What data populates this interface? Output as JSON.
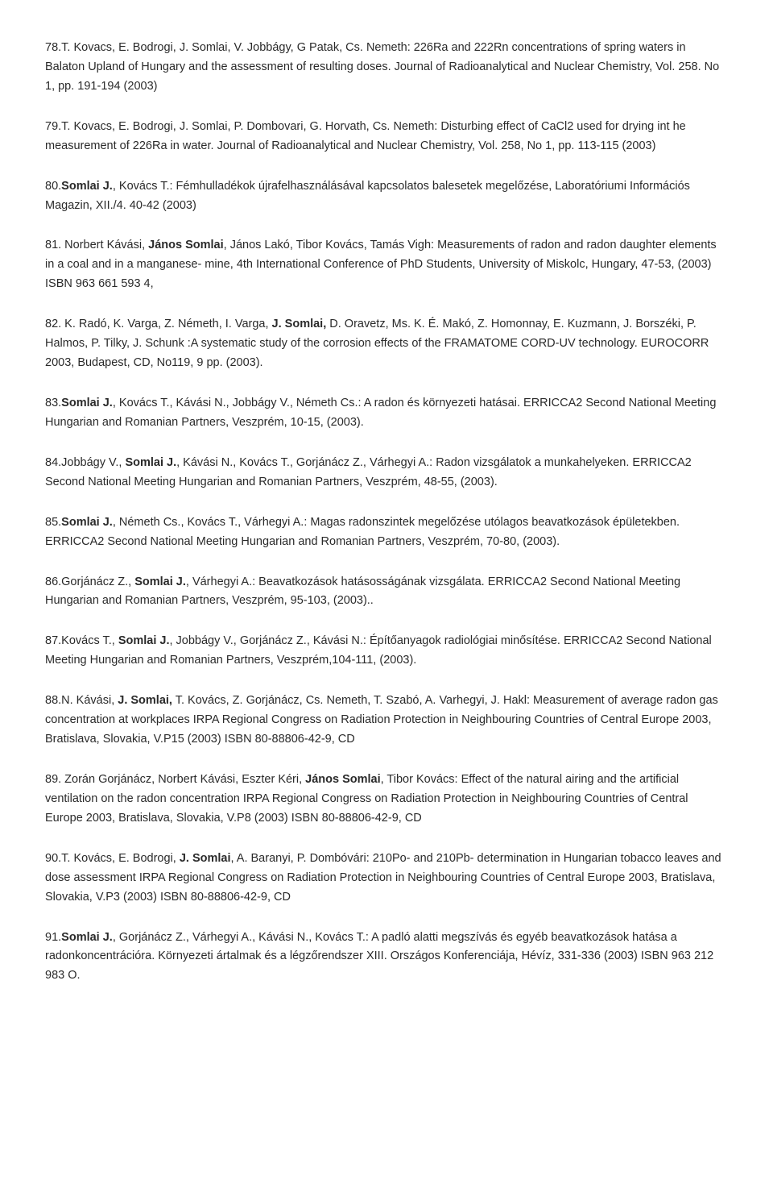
{
  "entries": [
    {
      "segments": [
        {
          "t": "78.T. Kovacs, E. Bodrogi, J. Somlai, V. Jobbágy, G Patak, Cs. Nemeth: 226Ra and 222Rn concentrations of spring waters in Balaton Upland of Hungary and the assessment of resulting doses. Journal of Radioanalytical and Nuclear Chemistry, Vol. 258. No 1, pp. 191-194 (2003)",
          "b": false
        }
      ]
    },
    {
      "segments": [
        {
          "t": "79.T. Kovacs, E. Bodrogi, J. Somlai, P. Dombovari, G. Horvath, Cs. Nemeth: Disturbing effect of CaCl2 used for drying int he measurement of 226Ra in water. Journal of Radioanalytical and Nuclear Chemistry, Vol. 258, No 1, pp. 113-115 (2003)",
          "b": false
        }
      ]
    },
    {
      "segments": [
        {
          "t": "80.",
          "b": false
        },
        {
          "t": "Somlai J.",
          "b": true
        },
        {
          "t": ", Kovács T.: Fémhulladékok újrafelhasználásával kapcsolatos balesetek megelőzése, Laboratóriumi Információs Magazin, XII./4. 40-42 (2003)",
          "b": false
        }
      ]
    },
    {
      "segments": [
        {
          "t": "81. Norbert Kávási, ",
          "b": false
        },
        {
          "t": "János Somlai",
          "b": true
        },
        {
          "t": ", János Lakó, Tibor Kovács, Tamás Vigh: Measurements of radon and radon daughter elements in a coal and in a manganese- mine, 4th International Conference of PhD Students, University of Miskolc, Hungary, 47-53, (2003) ISBN 963 661 593 4,",
          "b": false
        }
      ]
    },
    {
      "segments": [
        {
          "t": "82. K. Radó, K. Varga, Z. Németh, I. Varga, ",
          "b": false
        },
        {
          "t": "J. Somlai,",
          "b": true
        },
        {
          "t": " D. Oravetz, Ms. K. É. Makó, Z. Homonnay, E. Kuzmann, J. Borszéki, P. Halmos, P. Tilky, J. Schunk :A systematic study of the corrosion effects of the FRAMATOME CORD-UV technology. EUROCORR 2003, Budapest, CD, No119, 9 pp. (2003).",
          "b": false
        }
      ]
    },
    {
      "segments": [
        {
          "t": "83.",
          "b": false
        },
        {
          "t": "Somlai J.",
          "b": true
        },
        {
          "t": ", Kovács T., Kávási N., Jobbágy V., Németh Cs.: A radon és környezeti hatásai. ERRICCA2 Second National Meeting Hungarian and Romanian Partners, Veszprém, 10-15, (2003).",
          "b": false
        }
      ]
    },
    {
      "segments": [
        {
          "t": "84.Jobbágy V., ",
          "b": false
        },
        {
          "t": "Somlai J.",
          "b": true
        },
        {
          "t": ", Kávási N., Kovács T., Gorjánácz Z., Várhegyi A.: Radon vizsgálatok a munkahelyeken. ERRICCA2 Second National Meeting Hungarian and Romanian Partners, Veszprém, 48-55, (2003).",
          "b": false
        }
      ]
    },
    {
      "segments": [
        {
          "t": "85.",
          "b": false
        },
        {
          "t": "Somlai J.",
          "b": true
        },
        {
          "t": ", Németh Cs., Kovács T., Várhegyi A.: Magas radonszintek megelőzése utólagos beavatkozások épületekben. ERRICCA2 Second National Meeting Hungarian and Romanian Partners, Veszprém, 70-80, (2003).",
          "b": false
        }
      ]
    },
    {
      "segments": [
        {
          "t": "86.Gorjánácz Z., ",
          "b": false
        },
        {
          "t": "Somlai J.",
          "b": true
        },
        {
          "t": ", Várhegyi A.: Beavatkozások hatásosságának vizsgálata. ERRICCA2 Second National Meeting Hungarian and Romanian Partners, Veszprém, 95-103, (2003)..",
          "b": false
        }
      ]
    },
    {
      "segments": [
        {
          "t": "87.Kovács T., ",
          "b": false
        },
        {
          "t": "Somlai J.",
          "b": true
        },
        {
          "t": ", Jobbágy V., Gorjánácz Z., Kávási N.: Építőanyagok radiológiai minősítése. ERRICCA2 Second National Meeting Hungarian and Romanian Partners, Veszprém,104-111, (2003).",
          "b": false
        }
      ]
    },
    {
      "segments": [
        {
          "t": "88.N. Kávási, ",
          "b": false
        },
        {
          "t": "J. Somlai,",
          "b": true
        },
        {
          "t": " T. Kovács, Z. Gorjánácz, Cs. Nemeth, T. Szabó, A. Varhegyi, J. Hakl: Measurement of average radon gas concentration at workplaces IRPA Regional Congress on Radiation Protection in Neighbouring Countries of Central Europe 2003, Bratislava, Slovakia, V.P15 (2003) ISBN 80-88806-42-9, CD",
          "b": false
        }
      ]
    },
    {
      "segments": [
        {
          "t": "89. Zorán Gorjánácz, Norbert Kávási, Eszter Kéri, ",
          "b": false
        },
        {
          "t": "János Somlai",
          "b": true
        },
        {
          "t": ", Tibor Kovács: Effect of the natural airing and the artificial ventilation on the radon concentration IRPA Regional Congress on Radiation Protection in Neighbouring Countries of Central Europe 2003, Bratislava, Slovakia, V.P8 (2003) ISBN 80-88806-42-9, CD",
          "b": false
        }
      ]
    },
    {
      "segments": [
        {
          "t": "90.T. Kovács, E. Bodrogi, ",
          "b": false
        },
        {
          "t": "J. Somlai",
          "b": true
        },
        {
          "t": ", A. Baranyi, P. Dombóvári: 210Po- and 210Pb- determination in Hungarian tobacco leaves and dose assessment IRPA Regional Congress on Radiation Protection in Neighbouring Countries of Central Europe 2003, Bratislava, Slovakia, V.P3 (2003) ISBN 80-88806-42-9, CD",
          "b": false
        }
      ]
    },
    {
      "segments": [
        {
          "t": "91.",
          "b": false
        },
        {
          "t": "Somlai J.",
          "b": true
        },
        {
          "t": ", Gorjánácz Z., Várhegyi A., Kávási N., Kovács T.: A padló alatti megszívás és egyéb beavatkozások hatása a radonkoncentrációra. Környezeti ártalmak és a légzőrendszer XIII. Országos Konferenciája, Hévíz, 331-336 (2003) ISBN 963 212 983 O.",
          "b": false
        }
      ]
    }
  ]
}
